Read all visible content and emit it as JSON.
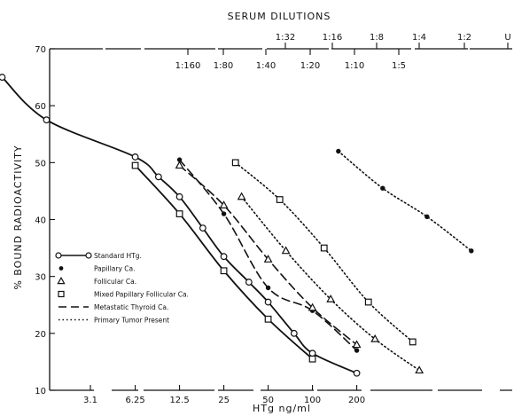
{
  "chart_data": {
    "type": "scatter",
    "top_axis": {
      "title": "SERUM DILUTIONS",
      "row1": [
        "1:32",
        "1:16",
        "1:8",
        "1:4",
        "1:2",
        "U"
      ],
      "row2": [
        "1:160",
        "1:80",
        "1:40",
        "1:20",
        "1:10",
        "1:5"
      ]
    },
    "xlabel": "HTg  ng/ml",
    "ylabel": "% BOUND RADIOACTIVITY",
    "x_scale": "log2",
    "x_ticks": [
      "3.1",
      "6.25",
      "12.5",
      "25",
      "50",
      "100",
      "200"
    ],
    "y_ticks": [
      "10",
      "20",
      "30",
      "40",
      "50",
      "60",
      "70"
    ],
    "ylim": [
      10,
      70
    ],
    "legend": [
      {
        "label": "Standard HTg.",
        "marker": "open-circle",
        "line": "solid"
      },
      {
        "label": "Papillary Ca.",
        "marker": "filled-circle",
        "line": "none"
      },
      {
        "label": "Follicular Ca.",
        "marker": "open-triangle",
        "line": "none"
      },
      {
        "label": "Mixed Papillary Follicular Ca.",
        "marker": "open-square",
        "line": "none"
      },
      {
        "label": "Metastatic Thyroid Ca.",
        "marker": "none",
        "line": "dashed"
      },
      {
        "label": "Primary Tumor Present",
        "marker": "none",
        "line": "dotted"
      }
    ],
    "series": [
      {
        "name": "Standard HTg.",
        "marker": "open-circle",
        "line": "solid",
        "x": [
          0.78,
          1.56,
          6.25,
          9,
          12.5,
          18,
          25,
          37,
          50,
          75,
          100,
          200
        ],
        "y": [
          65,
          57.5,
          51,
          47.5,
          44,
          38.5,
          33.5,
          29,
          25.5,
          20,
          16.5,
          13
        ]
      },
      {
        "name": "",
        "marker": "open-square",
        "line": "solid",
        "x": [
          6.25,
          12.5,
          25,
          50,
          100
        ],
        "y": [
          49.5,
          41,
          31,
          22.5,
          15.5
        ]
      },
      {
        "name": "",
        "marker": "filled-circle",
        "line": "dashed",
        "x": [
          12.5,
          25,
          50,
          100,
          200
        ],
        "y": [
          50.5,
          41,
          28,
          24,
          17
        ]
      },
      {
        "name": "",
        "marker": "open-triangle",
        "line": "dashed",
        "x": [
          12.5,
          25,
          50,
          100,
          200
        ],
        "y": [
          49.5,
          42.5,
          33,
          24.5,
          18
        ]
      },
      {
        "name": "",
        "marker": "open-triangle",
        "line": "dotted",
        "x": [
          33,
          66,
          133,
          266,
          532
        ],
        "y": [
          44,
          34.5,
          26,
          19,
          13.5
        ]
      },
      {
        "name": "",
        "marker": "open-square",
        "line": "dotted",
        "x": [
          30,
          60,
          120,
          240,
          480
        ],
        "y": [
          50,
          43.5,
          35,
          25.5,
          18.5
        ]
      },
      {
        "name": "",
        "marker": "filled-circle",
        "line": "dotted",
        "x": [
          150,
          300,
          600,
          1200
        ],
        "y": [
          52,
          45.5,
          40.5,
          34.5
        ]
      }
    ]
  }
}
